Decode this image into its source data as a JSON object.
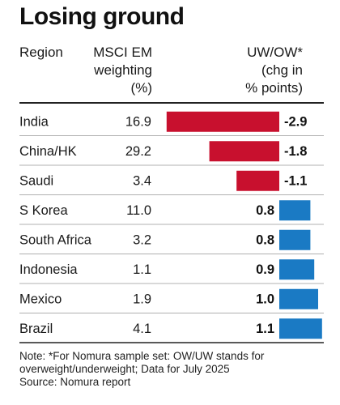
{
  "chart_data": {
    "type": "bar",
    "title": "Losing ground",
    "headers": {
      "region": "Region",
      "msci": [
        "MSCI EM",
        "weighting",
        "(%)"
      ],
      "uwow": [
        "UW/OW*",
        "(chg in",
        "% points)"
      ]
    },
    "categories": [
      "India",
      "China/HK",
      "Saudi",
      "S Korea",
      "South Africa",
      "Indonesia",
      "Mexico",
      "Brazil"
    ],
    "weighting": [
      "16.9",
      "29.2",
      "3.4",
      "11.0",
      "3.2",
      "1.1",
      "1.9",
      "4.1"
    ],
    "values": [
      -2.9,
      -1.8,
      -1.1,
      0.8,
      0.8,
      0.9,
      1.0,
      1.1
    ],
    "value_labels": [
      "-2.9",
      "-1.8",
      "-1.1",
      "0.8",
      "0.8",
      "0.9",
      "1.0",
      "1.1"
    ],
    "xlim": [
      -2.9,
      1.1
    ],
    "colors": {
      "negative": "#c8102e",
      "positive": "#1a7ac4",
      "rule": "#222222",
      "divider": "#b0b0b0"
    }
  },
  "note": {
    "lines": [
      "Note: *For Nomura sample set: OW/UW stands for",
      "overweight/underweight; Data for July 2025",
      "Source: Nomura report"
    ]
  }
}
